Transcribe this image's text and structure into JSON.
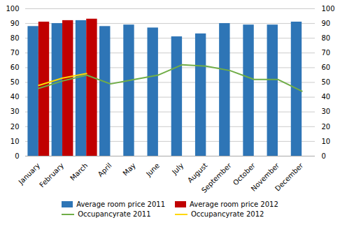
{
  "chart_data": {
    "type": "bar",
    "categories": [
      "January",
      "February",
      "March",
      "April",
      "May",
      "June",
      "July",
      "August",
      "September",
      "October",
      "November",
      "December"
    ],
    "series": [
      {
        "name": "Average room price 2011",
        "type": "bar",
        "color": "#2E75B6",
        "values": [
          88,
          90,
          92,
          88,
          89,
          87,
          81,
          83,
          90,
          89,
          89,
          91
        ]
      },
      {
        "name": "Average room price 2012",
        "type": "bar",
        "color": "#C00000",
        "values": [
          91,
          92,
          93,
          null,
          null,
          null,
          null,
          null,
          null,
          null,
          null,
          null
        ]
      },
      {
        "name": "Occupancyrate 2011",
        "type": "line",
        "axis": "y2",
        "color": "#70AD47",
        "values": [
          46,
          51,
          55,
          49,
          52,
          55,
          62,
          61,
          58,
          52,
          52,
          44
        ]
      },
      {
        "name": "Occupancyrate 2012",
        "type": "line",
        "axis": "y2",
        "color": "#FFD700",
        "values": [
          48,
          53,
          56,
          null,
          null,
          null,
          null,
          null,
          null,
          null,
          null,
          null
        ]
      }
    ],
    "ylim": [
      0,
      100
    ],
    "yticks": [
      0,
      10,
      20,
      30,
      40,
      50,
      60,
      70,
      80,
      90,
      100
    ],
    "y2lim": [
      0,
      100
    ],
    "y2ticks": [
      0,
      10,
      20,
      30,
      40,
      50,
      60,
      70,
      80,
      90,
      100
    ],
    "grid": true,
    "legend": "bottom"
  }
}
